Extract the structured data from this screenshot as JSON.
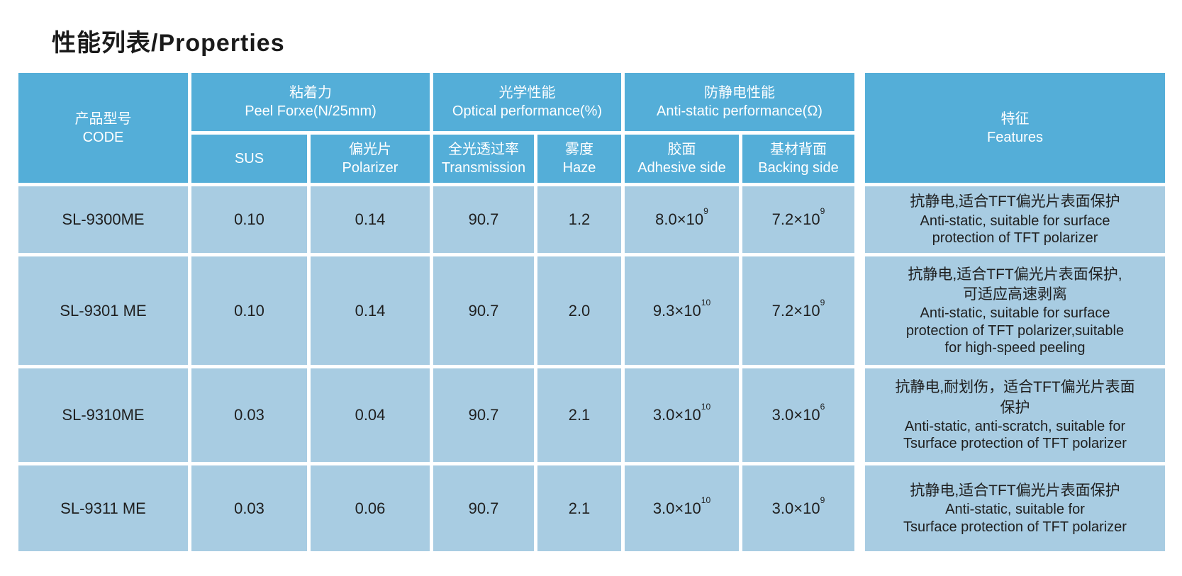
{
  "title": "性能列表/Properties",
  "colors": {
    "header_bg": "#54AED8",
    "body_bg": "#A8CCE2",
    "header_text": "#FFFFFF",
    "body_text": "#1F1F1F",
    "page_bg": "#FFFFFF"
  },
  "table": {
    "headers": {
      "code_zh": "产品型号",
      "code_en": "CODE",
      "peel_zh": "粘着力",
      "peel_en": "Peel Forxe(N/25mm)",
      "sus": "SUS",
      "polarizer_zh": "偏光片",
      "polarizer_en": "Polarizer",
      "optical_zh": "光学性能",
      "optical_en": "Optical performance(%)",
      "transmission_zh": "全光透过率",
      "transmission_en": "Transmission",
      "haze_zh": "雾度",
      "haze_en": "Haze",
      "antistatic_zh": "防静电性能",
      "antistatic_en": "Anti-static performance(Ω)",
      "adhesive_zh": "胶面",
      "adhesive_en": "Adhesive side",
      "backing_zh": "基材背面",
      "backing_en": "Backing side",
      "features_zh": "特征",
      "features_en": "Features"
    },
    "rows": [
      {
        "code": "SL-9300ME",
        "sus": "0.10",
        "polarizer": "0.14",
        "transmission": "90.7",
        "haze": "1.2",
        "adhesive_base": "8.0×10",
        "adhesive_exp": "9",
        "backing_base": "7.2×10",
        "backing_exp": "9",
        "features_zh": "抗静电,适合TFT偏光片表面保护",
        "features_en": "Anti-static, suitable for  surface\nprotection of TFT polarizer"
      },
      {
        "code": "SL-9301 ME",
        "sus": "0.10",
        "polarizer": "0.14",
        "transmission": "90.7",
        "haze": "2.0",
        "adhesive_base": "9.3×10",
        "adhesive_exp": "10",
        "backing_base": "7.2×10",
        "backing_exp": "9",
        "features_zh": "抗静电,适合TFT偏光片表面保护,\n可适应高速剥离",
        "features_en": "Anti-static, suitable for surface\nprotection of TFT polarizer,suitable\nfor high-speed peeling"
      },
      {
        "code": "SL-9310ME",
        "sus": "0.03",
        "polarizer": "0.04",
        "transmission": "90.7",
        "haze": "2.1",
        "adhesive_base": "3.0×10",
        "adhesive_exp": "10",
        "backing_base": "3.0×10",
        "backing_exp": "6",
        "features_zh": "抗静电,耐划伤，适合TFT偏光片表面\n保护",
        "features_en": "Anti-static, anti-scratch, suitable for\nTsurface protection of TFT polarizer"
      },
      {
        "code": "SL-9311 ME",
        "sus": "0.03",
        "polarizer": "0.06",
        "transmission": "90.7",
        "haze": "2.1",
        "adhesive_base": "3.0×10",
        "adhesive_exp": "10",
        "backing_base": "3.0×10",
        "backing_exp": "9",
        "features_zh": "抗静电,适合TFT偏光片表面保护",
        "features_en": "Anti-static, suitable for\nTsurface protection of TFT polarizer"
      }
    ]
  }
}
